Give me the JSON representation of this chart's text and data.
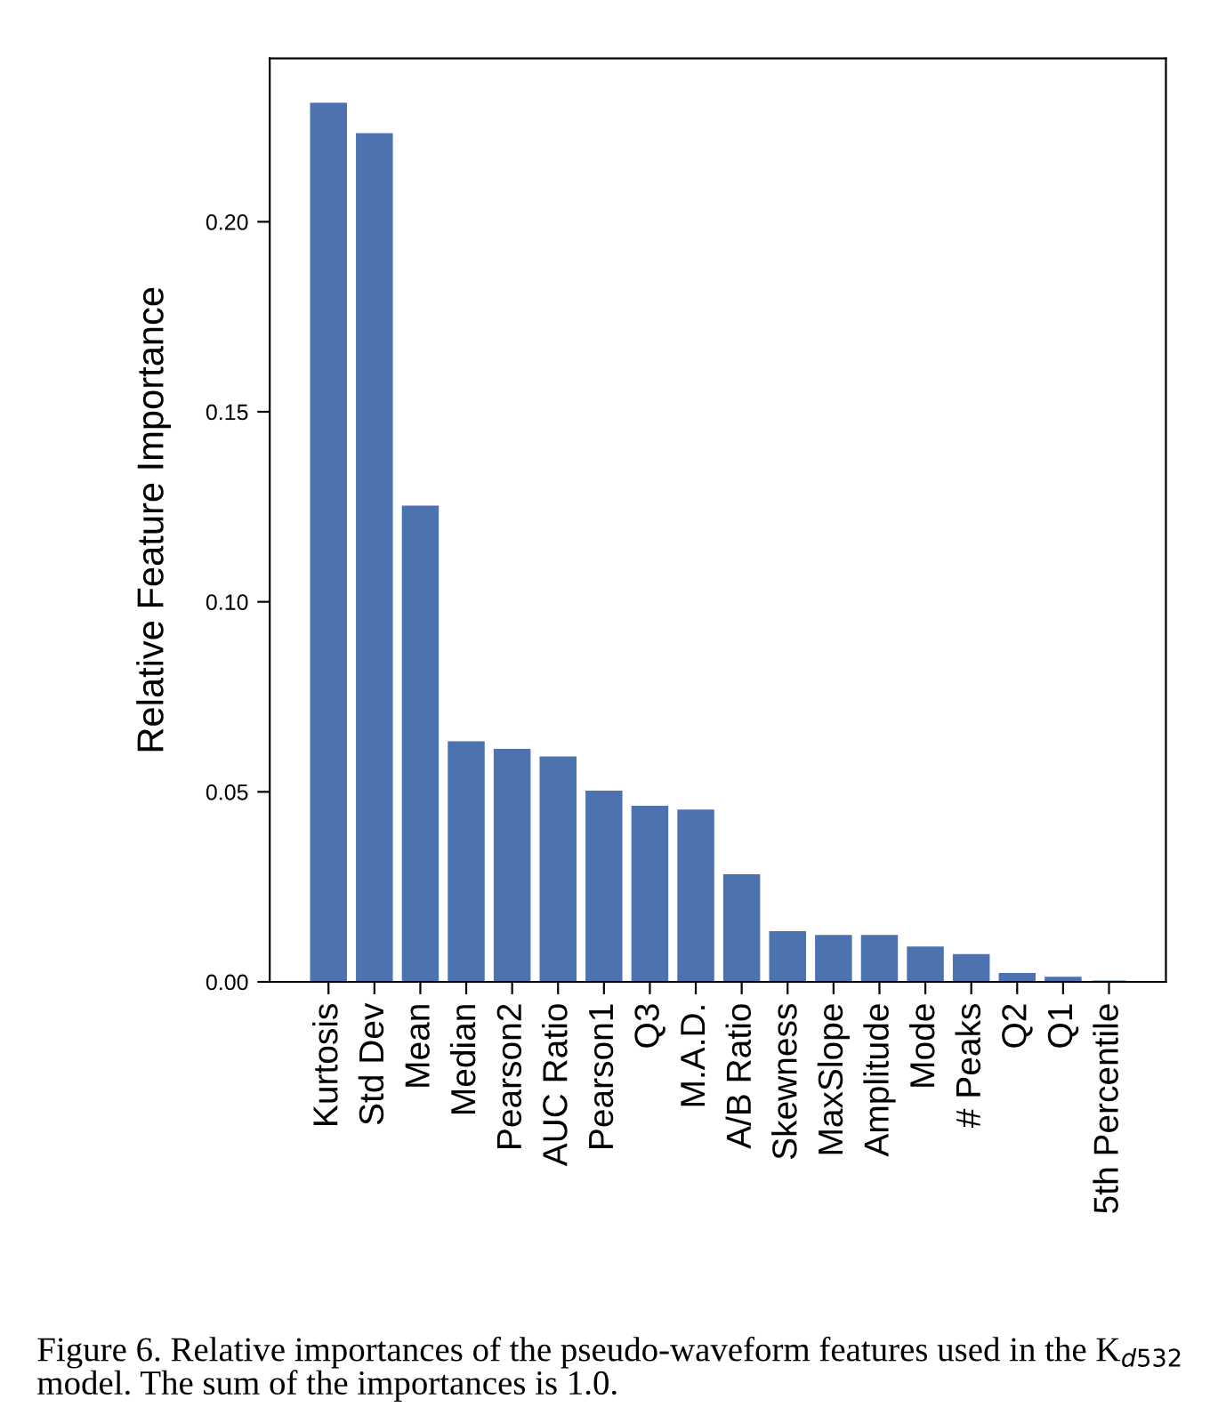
{
  "chart_data": {
    "type": "bar",
    "ylabel": "Relative Feature Importance",
    "categories": [
      "Kurtosis",
      "Std Dev",
      "Mean",
      "Median",
      "Pearson2",
      "AUC Ratio",
      "Pearson1",
      "Q3",
      "M.A.D.",
      "A/B Ratio",
      "Skewness",
      "MaxSlope",
      "Amplitude",
      "Mode",
      "# Peaks",
      "Q2",
      "Q1",
      "5th Percentile"
    ],
    "values": [
      0.231,
      0.223,
      0.125,
      0.063,
      0.061,
      0.059,
      0.05,
      0.046,
      0.045,
      0.028,
      0.013,
      0.012,
      0.012,
      0.009,
      0.007,
      0.002,
      0.001,
      0.0
    ],
    "color": "#4c72b0",
    "ylim": [
      0,
      0.243
    ],
    "yticks": [
      {
        "value": 0,
        "label": "0.00"
      },
      {
        "value": 0.05,
        "label": "0.05"
      },
      {
        "value": 0.1,
        "label": "0.10"
      },
      {
        "value": 0.15,
        "label": "0.15"
      },
      {
        "value": 0.2,
        "label": "0.20"
      }
    ],
    "grid": false,
    "annotations": [
      "Figure 6. Relative importances of the pseudo-waveform features used in the K$_{d532}$ model. The sum of the importances is 1.0."
    ]
  }
}
